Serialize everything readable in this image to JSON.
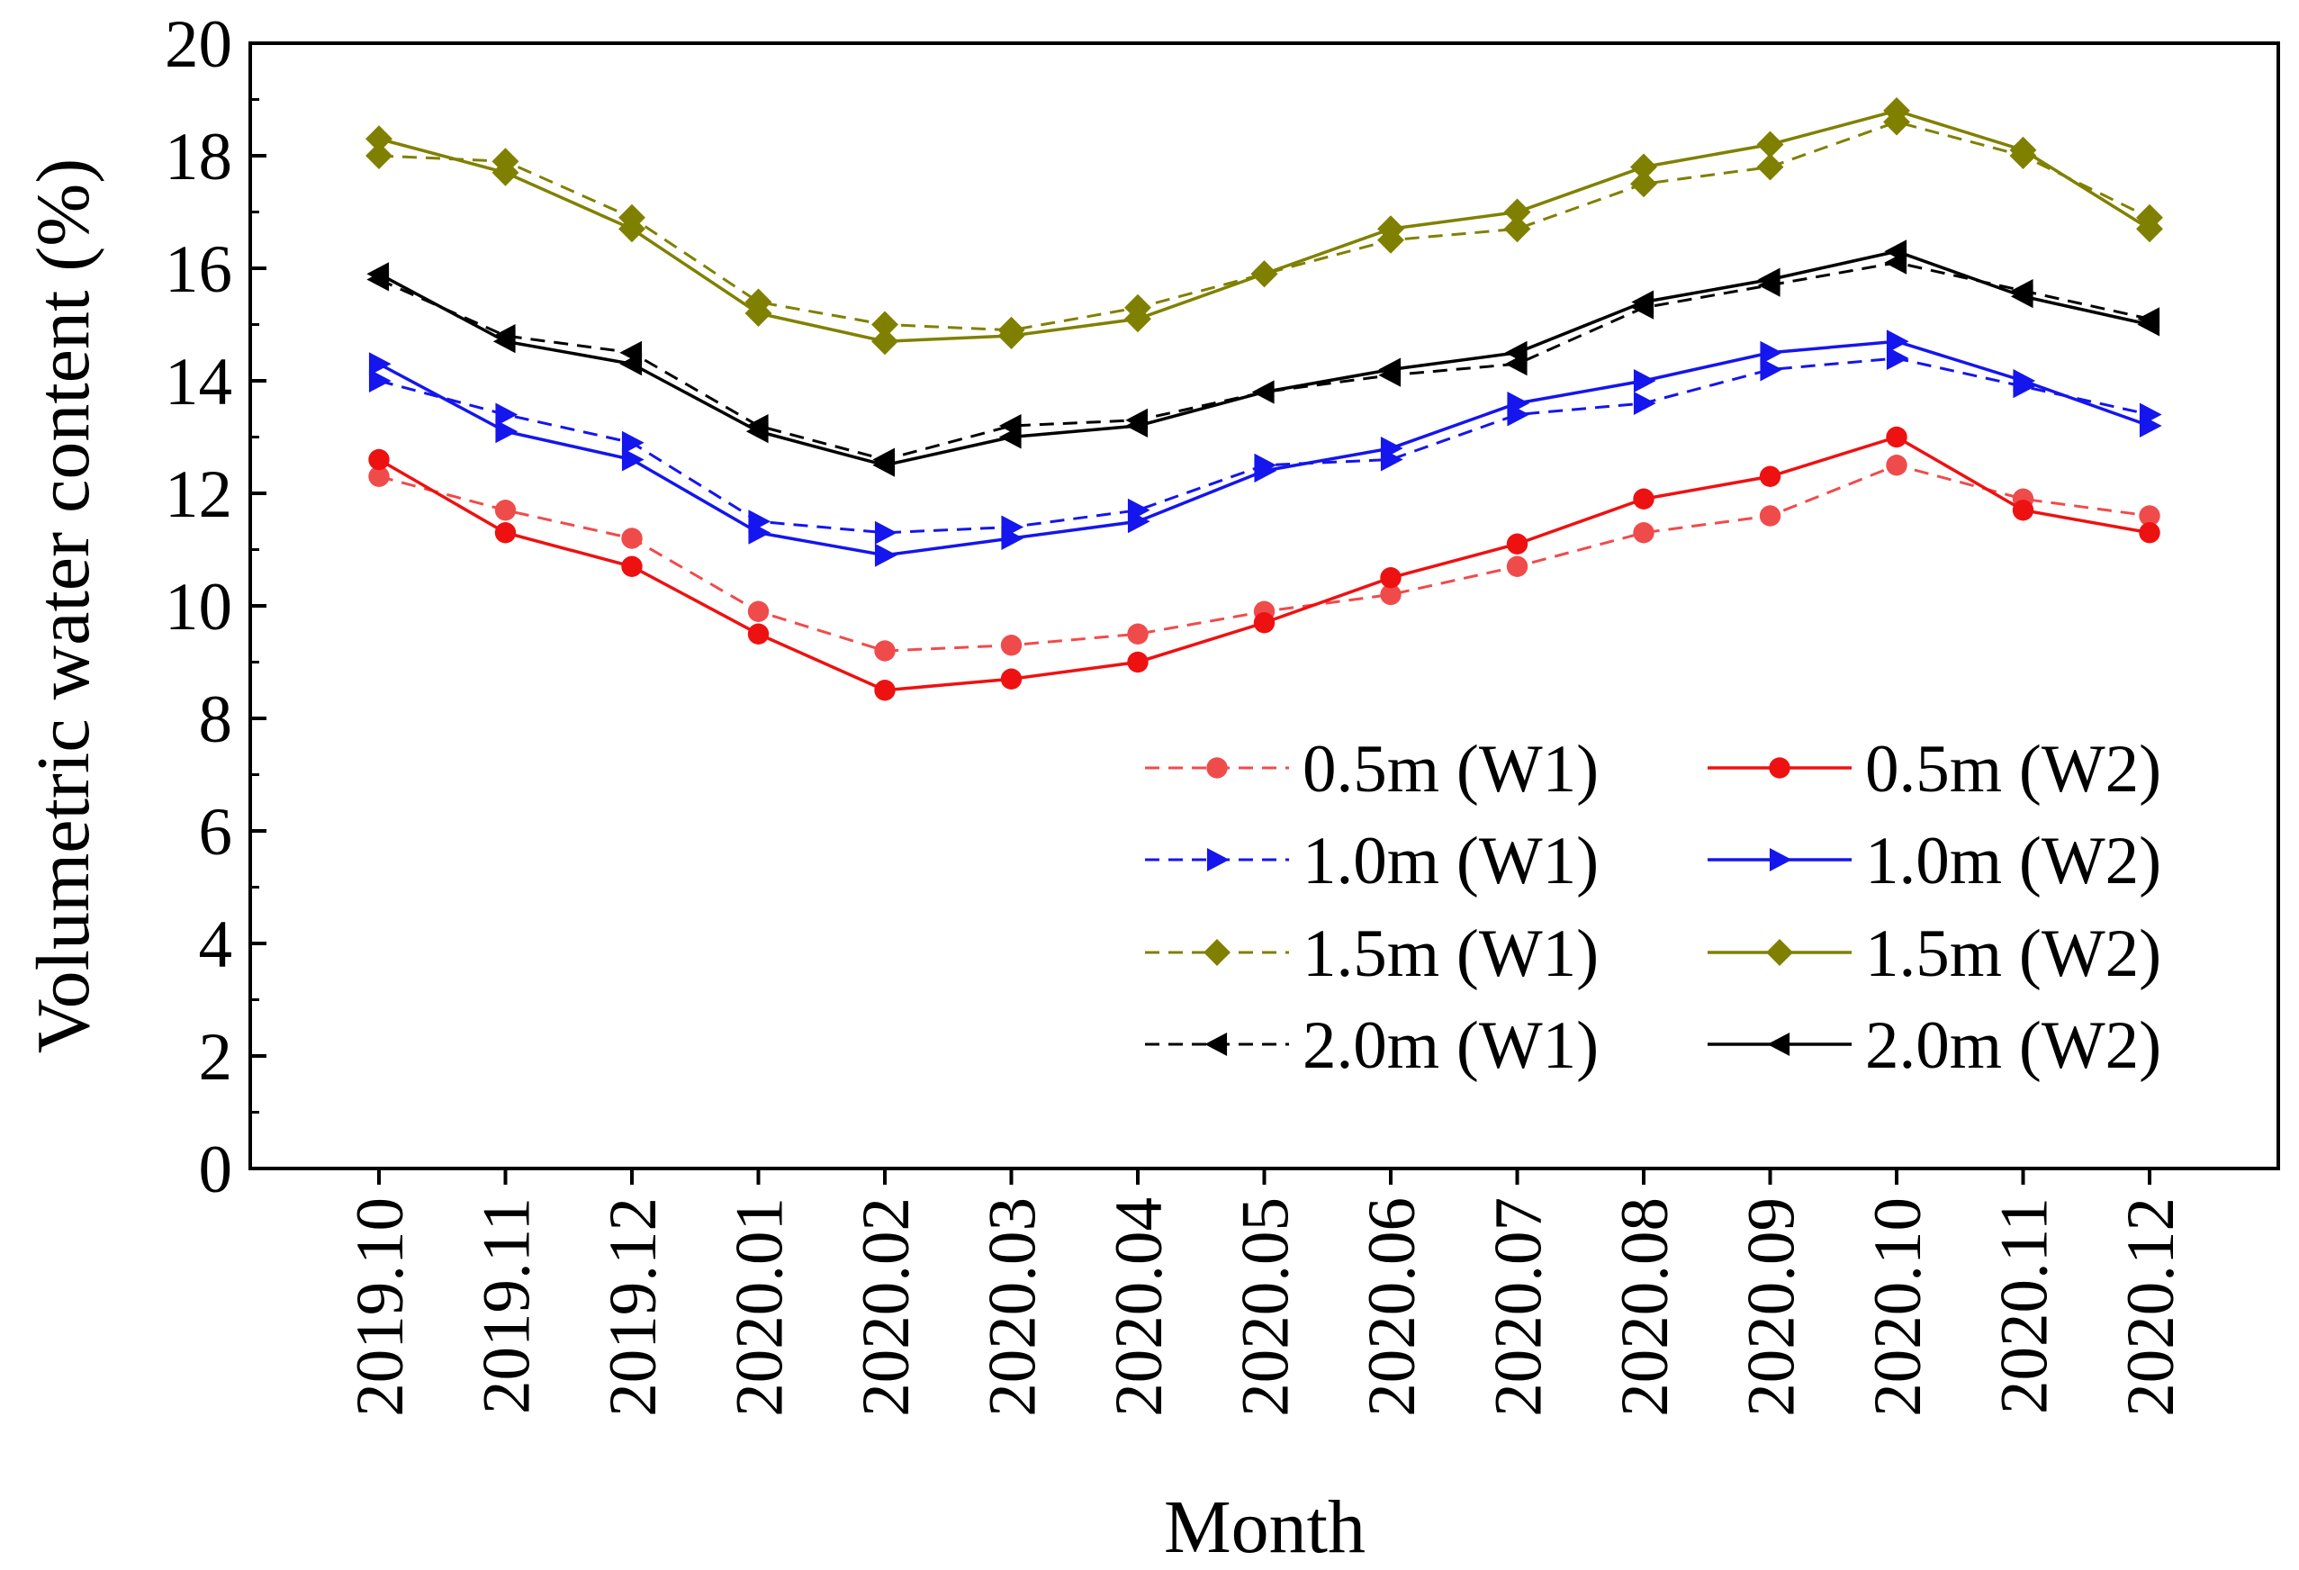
{
  "chart_data": {
    "type": "line",
    "title": "",
    "xlabel": "Month",
    "ylabel": "Volumetric water content (%)",
    "ylim": [
      0,
      20
    ],
    "yticks": [
      0,
      2,
      4,
      6,
      8,
      10,
      12,
      14,
      16,
      18,
      20
    ],
    "categories": [
      "2019.10",
      "2019.11",
      "2019.12",
      "2020.01",
      "2020.02",
      "2020.03",
      "2020.04",
      "2020.05",
      "2020.06",
      "2020.07",
      "2020.08",
      "2020.09",
      "2020.10",
      "2020.11",
      "2020.12"
    ],
    "legend_position": "bottom-right",
    "series": [
      {
        "name": "0.5m (W1)",
        "color": "#f04b4b",
        "dash": true,
        "marker": "circle",
        "values": [
          12.3,
          11.7,
          11.2,
          9.9,
          9.2,
          9.3,
          9.5,
          9.9,
          10.2,
          10.7,
          11.3,
          11.6,
          12.5,
          11.9,
          11.6
        ]
      },
      {
        "name": "0.5m (W2)",
        "color": "#ee1111",
        "dash": false,
        "marker": "circle",
        "values": [
          12.6,
          11.3,
          10.7,
          9.5,
          8.5,
          8.7,
          9.0,
          9.7,
          10.5,
          11.1,
          11.9,
          12.3,
          13.0,
          11.7,
          11.3
        ]
      },
      {
        "name": "1.0m (W1)",
        "color": "#1515ee",
        "dash": true,
        "marker": "triangle-right",
        "values": [
          14.0,
          13.4,
          12.9,
          11.5,
          11.3,
          11.4,
          11.7,
          12.5,
          12.6,
          13.4,
          13.6,
          14.2,
          14.4,
          13.9,
          13.4
        ]
      },
      {
        "name": "1.0m (W2)",
        "color": "#1515ee",
        "dash": false,
        "marker": "triangle-right",
        "values": [
          14.3,
          13.1,
          12.6,
          11.3,
          10.9,
          11.2,
          11.5,
          12.4,
          12.8,
          13.6,
          14.0,
          14.5,
          14.7,
          14.0,
          13.2
        ]
      },
      {
        "name": "1.5m (W1)",
        "color": "#808000",
        "dash": true,
        "marker": "diamond",
        "values": [
          18.0,
          17.9,
          16.9,
          15.4,
          15.0,
          14.9,
          15.3,
          15.9,
          16.5,
          16.7,
          17.5,
          17.8,
          18.6,
          18.0,
          16.9
        ]
      },
      {
        "name": "1.5m (W2)",
        "color": "#808000",
        "dash": false,
        "marker": "diamond",
        "values": [
          18.3,
          17.7,
          16.7,
          15.2,
          14.7,
          14.8,
          15.1,
          15.9,
          16.7,
          17.0,
          17.8,
          18.2,
          18.8,
          18.1,
          16.7
        ]
      },
      {
        "name": "2.0m (W1)",
        "color": "#000000",
        "dash": true,
        "marker": "triangle-left",
        "values": [
          15.8,
          14.8,
          14.5,
          13.2,
          12.6,
          13.2,
          13.3,
          13.8,
          14.1,
          14.3,
          15.3,
          15.7,
          16.1,
          15.6,
          15.1
        ]
      },
      {
        "name": "2.0m (W2)",
        "color": "#000000",
        "dash": false,
        "marker": "triangle-left",
        "values": [
          15.9,
          14.7,
          14.3,
          13.1,
          12.5,
          13.0,
          13.2,
          13.8,
          14.2,
          14.5,
          15.4,
          15.8,
          16.3,
          15.5,
          15.0
        ]
      }
    ]
  }
}
